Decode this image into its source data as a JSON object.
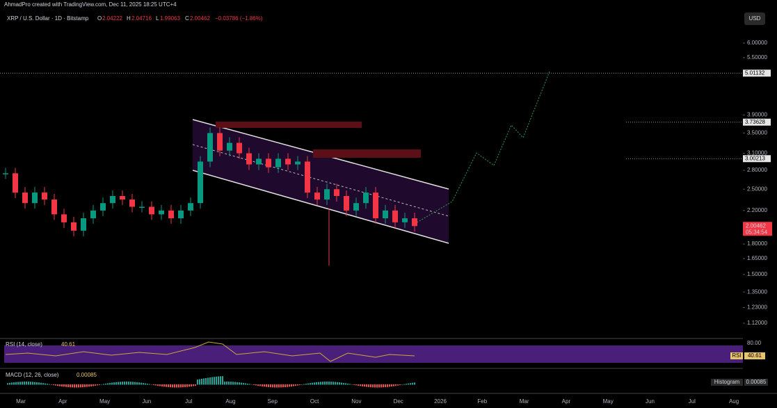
{
  "header": {
    "credit": "AhmadPro created with TradingView.com, Dec 11, 2025 18:25 UTC+4",
    "currency": "USD"
  },
  "legend": {
    "symbol": "XRP / U.S. Dollar · 1D · Bitstamp",
    "open_label": "O",
    "open": "2.04222",
    "high_label": "H",
    "high": "2.04716",
    "low_label": "L",
    "low": "1.99063",
    "close_label": "C",
    "close": "2.00462",
    "change": "−0.03786 (−1.86%)"
  },
  "price_axis": {
    "scale": "log",
    "yticks": [
      {
        "value": 6,
        "label": "6.00000"
      },
      {
        "value": 5.5,
        "label": "5.50000"
      },
      {
        "value": 3.9,
        "label": "3.90000"
      },
      {
        "value": 3.5,
        "label": "3.50000"
      },
      {
        "value": 3.1,
        "label": "3.10000"
      },
      {
        "value": 2.8,
        "label": "2.80000"
      },
      {
        "value": 2.5,
        "label": "2.50000"
      },
      {
        "value": 2.2,
        "label": "2.20000"
      },
      {
        "value": 1.8,
        "label": "1.80000"
      },
      {
        "value": 1.65,
        "label": "1.65000"
      },
      {
        "value": 1.5,
        "label": "1.50000"
      },
      {
        "value": 1.35,
        "label": "1.35000"
      },
      {
        "value": 1.23,
        "label": "1.23000"
      },
      {
        "value": 1.12,
        "label": "1.12000"
      }
    ]
  },
  "markers": [
    5.01132,
    3.73628,
    3.00213
  ],
  "last_price": {
    "value": 2.00462,
    "countdown": "05:34:54",
    "color": "#f23645"
  },
  "price": {
    "up_color": "#089981",
    "down_color": "#f23645",
    "values": [
      2.75,
      2.45,
      2.3,
      2.45,
      2.35,
      2.15,
      2.05,
      1.95,
      2.1,
      2.2,
      2.3,
      2.4,
      2.35,
      2.25,
      2.25,
      2.15,
      2.2,
      2.1,
      2.2,
      2.3,
      2.95,
      3.5,
      3.15,
      3.3,
      3.1,
      2.9,
      3.0,
      2.85,
      3.0,
      2.9,
      2.95,
      2.45,
      2.35,
      2.5,
      2.4,
      2.2,
      2.3,
      2.45,
      2.1,
      2.2,
      2.05,
      2.1,
      2.00462
    ]
  },
  "time_axis": {
    "labels": [
      "Mar",
      "Apr",
      "May",
      "Jun",
      "Jul",
      "Aug",
      "Sep",
      "Oct",
      "Nov",
      "Dec",
      "2026",
      "Feb",
      "Mar",
      "Apr",
      "May",
      "Jun",
      "Jul",
      "Aug"
    ]
  },
  "rsi": {
    "title": "RSI (14, close)",
    "value": "40.61",
    "level": "80.00"
  },
  "macd": {
    "title": "MACD (12, 26, close)",
    "value": "0.00085",
    "histogram_label": "Histogram",
    "histogram_value": "0.00085"
  }
}
